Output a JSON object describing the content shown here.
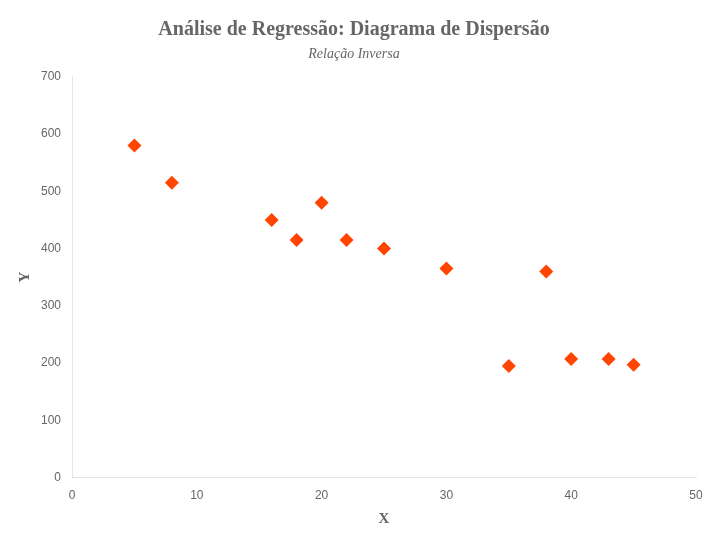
{
  "chart_data": {
    "type": "scatter",
    "title": "Análise de Regressão: Diagrama de Dispersão",
    "subtitle": "Relação Inversa",
    "xlabel": "X",
    "ylabel": "Y",
    "x": [
      5,
      8,
      16,
      18,
      20,
      22,
      25,
      30,
      35,
      38,
      40,
      43,
      45
    ],
    "values": [
      580,
      515,
      450,
      415,
      480,
      415,
      400,
      365,
      195,
      360,
      207,
      207,
      197
    ],
    "color": "#FF4500",
    "marker": "diamond",
    "xlim": [
      0,
      50
    ],
    "ylim": [
      0,
      700
    ],
    "xticks": [
      0,
      10,
      20,
      30,
      40,
      50
    ],
    "yticks": [
      0,
      100,
      200,
      300,
      400,
      500,
      600,
      700
    ],
    "grid": false
  }
}
